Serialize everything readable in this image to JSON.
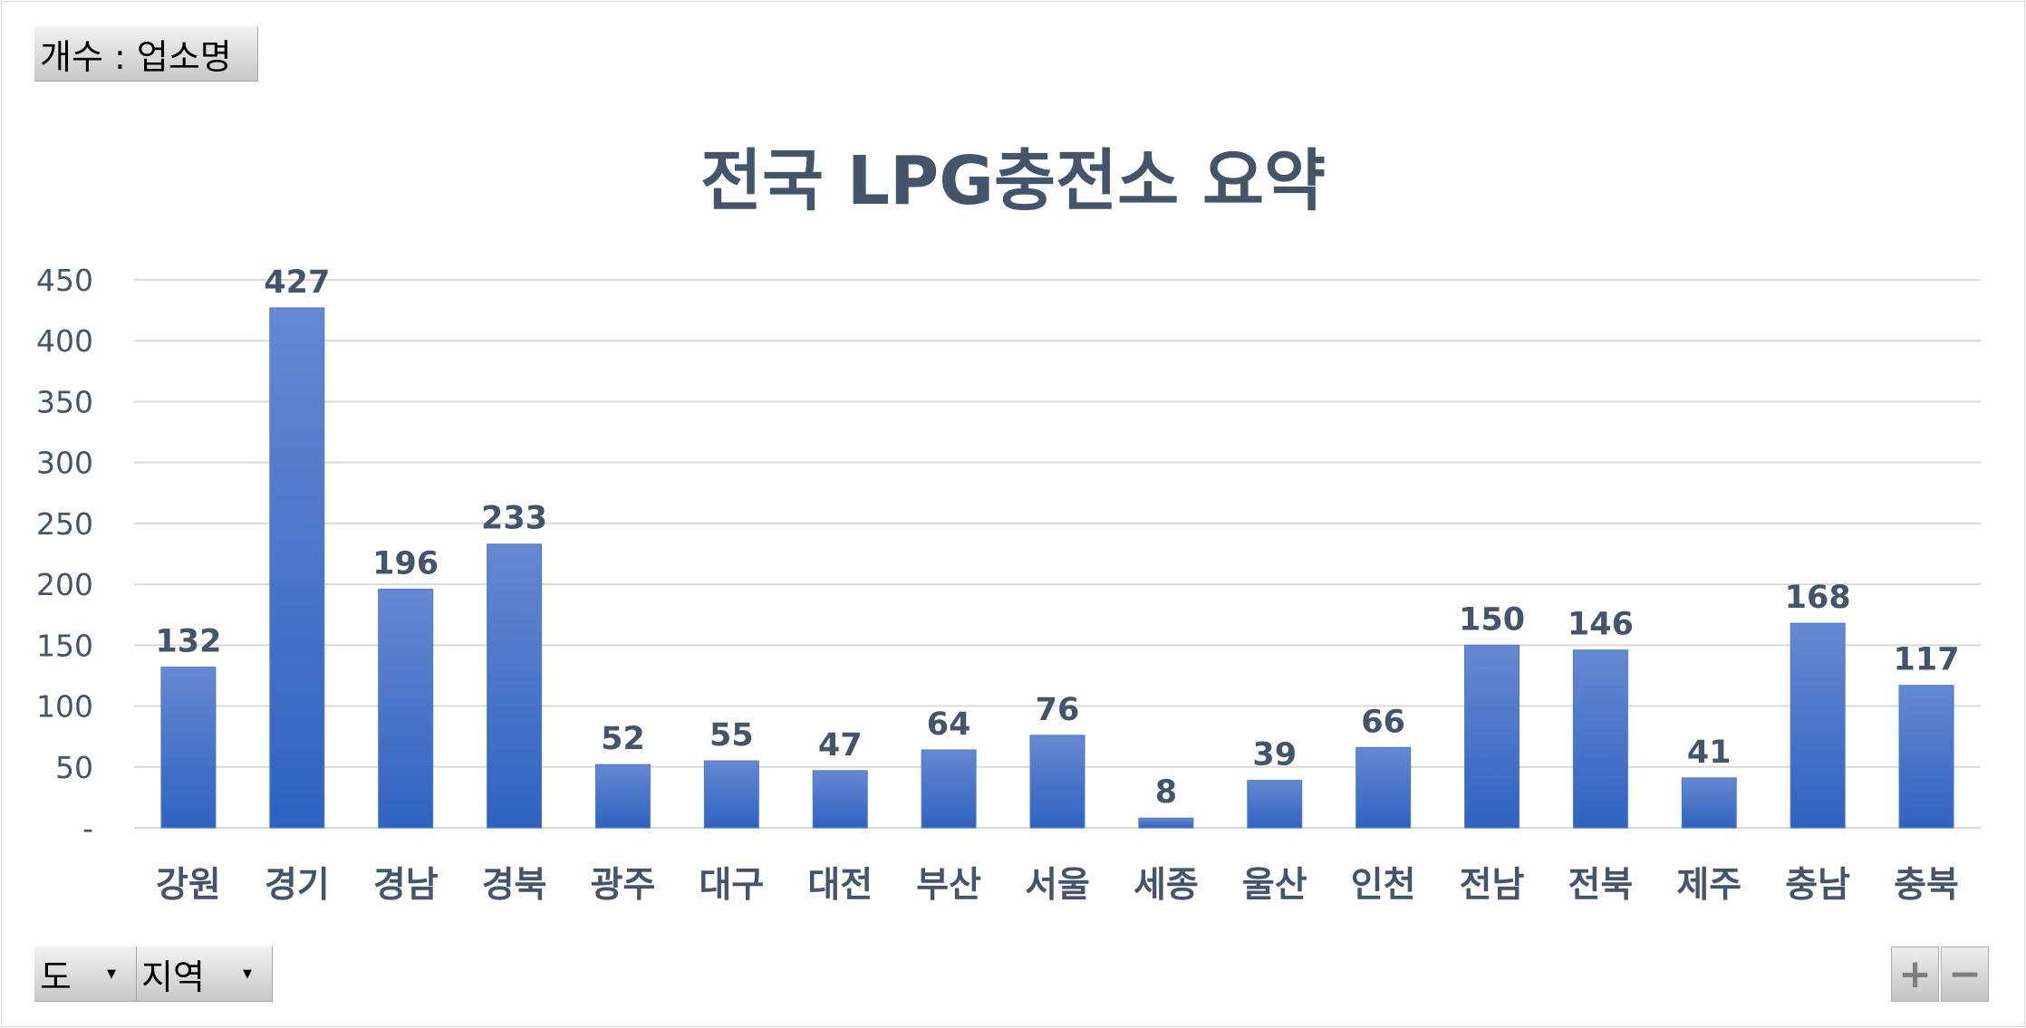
{
  "pivot": {
    "value_field_label": "개수 : 업소명",
    "axis_fields": [
      {
        "label": "도",
        "icon": "dropdown-arrow-icon"
      },
      {
        "label": "지역",
        "icon": "dropdown-arrow-icon"
      }
    ],
    "zoom_in_label": "+",
    "zoom_out_label": "−"
  },
  "colors": {
    "bar_top": "#6688d2",
    "bar_bottom": "#2f63c0",
    "axis_text": "#44546a",
    "gridline": "#d9d9d9"
  },
  "chart_data": {
    "type": "bar",
    "title": "전국 LPG충전소 요약",
    "xlabel": "",
    "ylabel": "",
    "categories": [
      "강원",
      "경기",
      "경남",
      "경북",
      "광주",
      "대구",
      "대전",
      "부산",
      "서울",
      "세종",
      "울산",
      "인천",
      "전남",
      "전북",
      "제주",
      "충남",
      "충북"
    ],
    "values": [
      132,
      427,
      196,
      233,
      52,
      55,
      47,
      64,
      76,
      8,
      39,
      66,
      150,
      146,
      41,
      168,
      117
    ],
    "ylim": [
      0,
      450
    ],
    "yticks": [
      0,
      50,
      100,
      150,
      200,
      250,
      300,
      350,
      400,
      450
    ],
    "ytick_labels": [
      "-",
      "50",
      "100",
      "150",
      "200",
      "250",
      "300",
      "350",
      "400",
      "450"
    ],
    "grid": true,
    "data_labels": true,
    "legend": "none"
  }
}
